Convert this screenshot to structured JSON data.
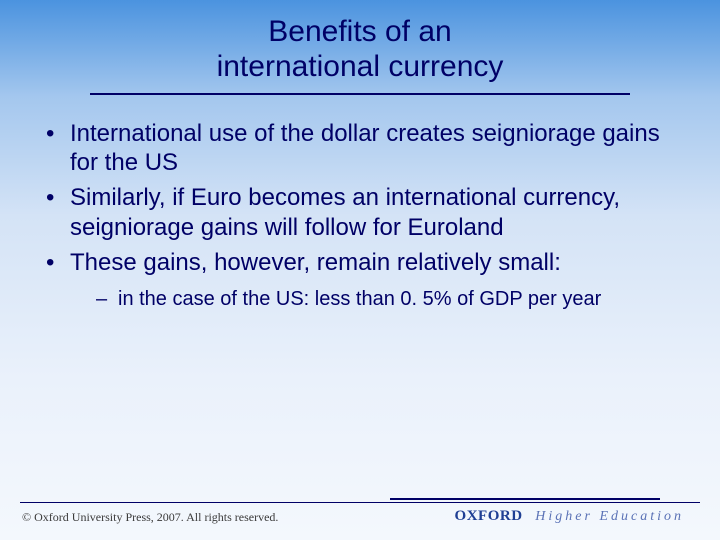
{
  "colors": {
    "text_primary": "#000066",
    "gradient_top": "#4b93df",
    "gradient_bottom": "#f4f8fd",
    "footer_text": "#3a3a3a",
    "brand_main": "#1f3f94",
    "brand_sub": "#5a72b6"
  },
  "title": {
    "line1": "Benefits of an",
    "line2": "international currency",
    "fontsize": 30
  },
  "bullets": {
    "level1_fontsize": 24,
    "level2_fontsize": 20,
    "items": [
      {
        "text": "International use of the dollar creates seigniorage gains for the US"
      },
      {
        "text": "Similarly, if Euro becomes an international currency, seigniorage gains will follow for Euroland"
      },
      {
        "text": "These gains, however, remain relatively small:"
      }
    ],
    "subitems": [
      {
        "text": "in the case of the US: less than 0. 5% of GDP per year"
      }
    ]
  },
  "footer": {
    "copyright_symbol": "©",
    "left_text": "Oxford University Press, 2007. All rights reserved.",
    "brand_main": "OXFORD",
    "brand_sub": "Higher Education"
  }
}
